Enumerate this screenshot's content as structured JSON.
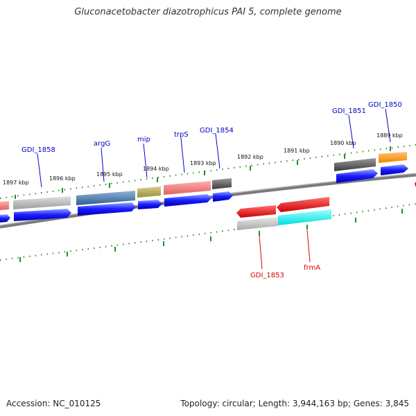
{
  "title": "Gluconacetobacter diazotrophicus PAI 5, complete genome",
  "accession": "Accession: NC_010125",
  "topology": "Topology: circular; Length: 3,944,163 bp; Genes: 3,845",
  "kbp_labels": [
    "1897 kbp",
    "1896 kbp",
    "1895 kbp",
    "1894 kbp",
    "1893 kbp",
    "1892 kbp",
    "1891 kbp",
    "1890 kbp",
    "1889 kbp"
  ],
  "genes_top": [
    "GDI_1858",
    "argG",
    "mip",
    "trpS",
    "GDI_1854",
    "GDI_1851",
    "GDI_1850"
  ],
  "genes_bottom": [
    "GDI_1853",
    "frmA"
  ],
  "colors": {
    "forward_label": "#0000c8",
    "reverse_label": "#d40000",
    "tick": "#2a8a2a",
    "backbone": "#808080",
    "cds": "#0000ee"
  }
}
